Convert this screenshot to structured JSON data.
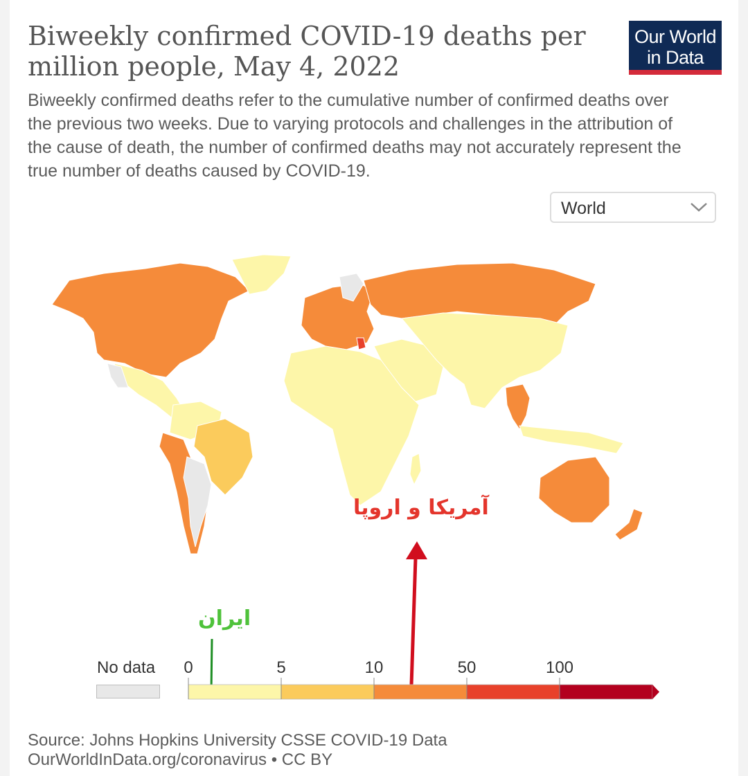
{
  "header": {
    "title": "Biweekly confirmed COVID-19 deaths per million people, May 4, 2022",
    "subtitle": "Biweekly confirmed deaths refer to the cumulative number of confirmed deaths over the previous two weeks. Due to varying protocols and challenges in the attribution of the cause of death, the number of confirmed deaths may not accurately represent the true number of deaths caused by COVID-19.",
    "logo_line1": "Our World",
    "logo_line2": "in Data"
  },
  "controls": {
    "region_select": "World",
    "region_icon": "chevron-down-icon"
  },
  "annotations": {
    "red_text": "آمریکا و اروپا",
    "green_text": "ایران",
    "red_color": "#e4352c",
    "green_color": "#4fc23b"
  },
  "chart_data": {
    "type": "choropleth",
    "legend": {
      "no_data_label": "No data",
      "no_data_color": "#e8e8e8",
      "ticks": [
        "0",
        "5",
        "10",
        "50",
        "100"
      ],
      "bins": [
        {
          "min": 0,
          "max": 5,
          "color": "#fdf6a9"
        },
        {
          "min": 5,
          "max": 10,
          "color": "#fbcb5c"
        },
        {
          "min": 10,
          "max": 50,
          "color": "#f58b3a"
        },
        {
          "min": 50,
          "max": 100,
          "color": "#e8412b"
        },
        {
          "min": 100,
          "max": null,
          "color": "#b3001e"
        }
      ]
    },
    "region_colors": {
      "north-america": "#f58b3a",
      "greenland": "#fdf6a9",
      "mexico-central": "#fdf6a9",
      "south-america-north": "#fdf6a9",
      "brazil": "#fbcb5c",
      "southern-cone": "#f58b3a",
      "no-data-land": "#e8e8e8",
      "europe": "#f58b3a",
      "russia": "#f58b3a",
      "africa": "#fdf6a9",
      "middle-east": "#fdf6a9",
      "asia": "#fdf6a9",
      "southeast-asia": "#f58b3a",
      "indonesia": "#fdf6a9",
      "australia": "#f58b3a",
      "new-zealand": "#f58b3a",
      "greece": "#e8412b"
    }
  },
  "footer": {
    "source_line1": "Source: Johns Hopkins University CSSE COVID-19 Data",
    "source_line2": "OurWorldInData.org/coronavirus • CC BY"
  }
}
